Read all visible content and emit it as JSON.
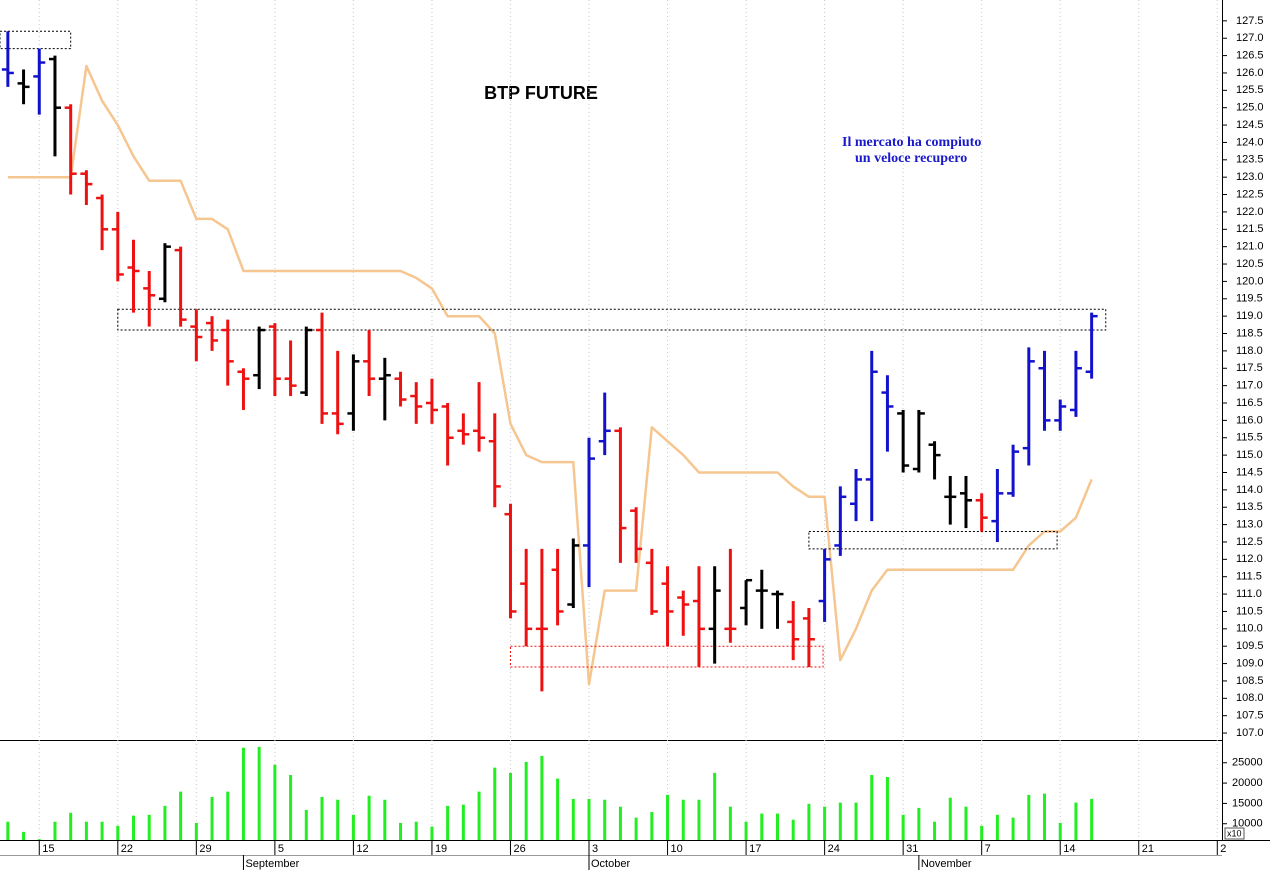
{
  "chart_data": [
    {
      "type": "ohlc",
      "title": "BTP FUTURE",
      "annotation": [
        "Il mercato ha compiuto",
        "un veloce recupero"
      ],
      "ylim": [
        106.8,
        128.1
      ],
      "yticks": [
        {
          "value": 107,
          "label": "107.0"
        },
        107.5,
        {
          "value": 108,
          "label": "108.0"
        },
        108.5,
        {
          "value": 109,
          "label": "109.0"
        },
        109.5,
        {
          "value": 110,
          "label": "110.0"
        },
        110.5,
        {
          "value": 111,
          "label": "111.0"
        },
        111.5,
        {
          "value": 112,
          "label": "112.0"
        },
        112.5,
        {
          "value": 113,
          "label": "113.0"
        },
        113.5,
        {
          "value": 114,
          "label": "114.0"
        },
        114.5,
        {
          "value": 115,
          "label": "115.0"
        },
        115.5,
        {
          "value": 116,
          "label": "116.0"
        },
        116.5,
        {
          "value": 117,
          "label": "117.0"
        },
        117.5,
        {
          "value": 118,
          "label": "118.0"
        },
        118.5,
        {
          "value": 119,
          "label": "119.0"
        },
        119.5,
        {
          "value": 120,
          "label": "120.0"
        },
        120.5,
        {
          "value": 121,
          "label": "121.0"
        },
        121.5,
        {
          "value": 122,
          "label": "122.0"
        },
        122.5,
        {
          "value": 123,
          "label": "123.0"
        },
        123.5,
        {
          "value": 124,
          "label": "124.0"
        },
        124.5,
        {
          "value": 125,
          "label": "125.0"
        },
        125.5,
        {
          "value": 126,
          "label": "126.0"
        },
        126.5,
        {
          "value": 127,
          "label": "127.0"
        },
        127.5
      ],
      "open": [
        126.1,
        125.7,
        125.9,
        126.4,
        125.0,
        123.1,
        122.4,
        121.5,
        120.4,
        119.8,
        119.5,
        120.9,
        118.7,
        118.8,
        118.6,
        117.4,
        117.3,
        118.7,
        117.2,
        116.8,
        118.6,
        116.2,
        116.2,
        117.7,
        117.2,
        117.2,
        116.7,
        116.5,
        116.4,
        115.7,
        115.7,
        115.4,
        113.3,
        111.3,
        110.0,
        111.7,
        110.7,
        112.4,
        115.4,
        115.7,
        113.4,
        111.9,
        111.3,
        110.9,
        110.8,
        110.0,
        110.0,
        110.6,
        111.1,
        111.0,
        110.2,
        110.3,
        110.8,
        112.4,
        113.6,
        114.3,
        116.8,
        116.2,
        114.6,
        115.3,
        113.8,
        113.9,
        113.7,
        113.1,
        113.9,
        115.2,
        117.5,
        116.0,
        116.3,
        117.4
      ],
      "high": [
        127.2,
        126.1,
        126.7,
        126.5,
        125.1,
        123.2,
        122.5,
        122.0,
        121.2,
        120.3,
        121.1,
        121.0,
        119.2,
        119.0,
        118.9,
        117.5,
        118.7,
        118.8,
        118.3,
        118.7,
        119.1,
        118.0,
        117.9,
        118.6,
        117.8,
        117.4,
        117.1,
        117.2,
        116.5,
        116.2,
        117.1,
        116.2,
        113.6,
        112.3,
        112.3,
        112.3,
        112.6,
        115.5,
        116.8,
        115.8,
        113.5,
        112.3,
        111.8,
        111.1,
        111.8,
        111.8,
        112.3,
        111.4,
        111.7,
        111.1,
        110.8,
        110.6,
        112.3,
        114.1,
        114.6,
        118.0,
        117.3,
        116.3,
        116.3,
        115.4,
        114.4,
        114.4,
        113.9,
        114.6,
        115.3,
        118.1,
        118.0,
        116.6,
        118.0,
        119.1
      ],
      "low": [
        125.6,
        125.1,
        124.8,
        123.6,
        122.5,
        122.2,
        120.9,
        120.0,
        119.1,
        118.7,
        119.4,
        118.7,
        117.7,
        118.0,
        117.0,
        116.3,
        116.9,
        116.7,
        116.7,
        116.7,
        115.9,
        115.6,
        115.7,
        116.7,
        116.0,
        116.4,
        115.9,
        115.9,
        114.7,
        115.3,
        115.1,
        113.5,
        110.3,
        109.5,
        108.2,
        110.1,
        110.6,
        111.2,
        115.0,
        111.9,
        111.9,
        110.4,
        109.5,
        109.8,
        108.9,
        109.0,
        109.6,
        110.1,
        110.0,
        110.0,
        109.1,
        108.9,
        110.2,
        112.1,
        113.1,
        113.1,
        115.1,
        114.5,
        114.5,
        114.3,
        113.0,
        112.9,
        112.8,
        112.5,
        113.8,
        114.7,
        115.7,
        115.7,
        116.1,
        117.2
      ],
      "close": [
        126.0,
        125.6,
        126.3,
        125.0,
        123.1,
        122.8,
        121.5,
        120.2,
        120.3,
        119.6,
        121.0,
        118.9,
        118.4,
        118.3,
        117.7,
        117.2,
        118.6,
        117.2,
        117.0,
        118.6,
        116.2,
        115.9,
        117.7,
        117.2,
        117.3,
        116.6,
        116.4,
        116.3,
        115.5,
        115.6,
        115.5,
        114.1,
        110.5,
        110.0,
        110.0,
        110.5,
        112.4,
        114.9,
        115.7,
        112.9,
        112.3,
        110.5,
        110.5,
        110.7,
        110.0,
        111.1,
        110.0,
        111.4,
        111.1,
        111.0,
        109.7,
        109.7,
        112.0,
        113.8,
        114.3,
        117.4,
        116.4,
        114.7,
        116.2,
        115.0,
        113.8,
        113.7,
        113.2,
        113.9,
        115.1,
        117.7,
        116.0,
        116.4,
        117.5,
        119.0
      ],
      "colors": [
        "#1212cc",
        "#000000",
        "#1212cc",
        "#000000",
        "#ee1111",
        "#ee1111",
        "#ee1111",
        "#ee1111",
        "#ee1111",
        "#ee1111",
        "#000000",
        "#ee1111",
        "#ee1111",
        "#ee1111",
        "#ee1111",
        "#ee1111",
        "#000000",
        "#ee1111",
        "#ee1111",
        "#000000",
        "#ee1111",
        "#ee1111",
        "#000000",
        "#ee1111",
        "#000000",
        "#ee1111",
        "#ee1111",
        "#ee1111",
        "#ee1111",
        "#ee1111",
        "#ee1111",
        "#ee1111",
        "#ee1111",
        "#ee1111",
        "#ee1111",
        "#ee1111",
        "#000000",
        "#1212cc",
        "#1212cc",
        "#ee1111",
        "#ee1111",
        "#ee1111",
        "#ee1111",
        "#ee1111",
        "#ee1111",
        "#000000",
        "#ee1111",
        "#000000",
        "#000000",
        "#000000",
        "#ee1111",
        "#ee1111",
        "#1212cc",
        "#1212cc",
        "#1212cc",
        "#1212cc",
        "#1212cc",
        "#000000",
        "#000000",
        "#000000",
        "#000000",
        "#000000",
        "#ee1111",
        "#1212cc",
        "#1212cc",
        "#1212cc",
        "#1212cc",
        "#1212cc",
        "#1212cc",
        "#1212cc"
      ],
      "line": {
        "color": "#f5c690",
        "values": [
          123.0,
          123.0,
          123.0,
          123.0,
          123.0,
          126.2,
          125.2,
          124.5,
          123.6,
          122.9,
          122.9,
          122.9,
          121.8,
          121.8,
          121.5,
          120.3,
          120.3,
          120.3,
          120.3,
          120.3,
          120.3,
          120.3,
          120.3,
          120.3,
          120.3,
          120.3,
          120.1,
          119.8,
          119.0,
          119.0,
          119.0,
          118.5,
          115.9,
          115.0,
          114.8,
          114.8,
          114.8,
          108.4,
          111.1,
          111.1,
          111.1,
          115.8,
          115.4,
          115.0,
          114.5,
          114.5,
          114.5,
          114.5,
          114.5,
          114.5,
          114.1,
          113.8,
          113.8,
          109.1,
          110.0,
          111.1,
          111.7,
          111.7,
          111.7,
          111.7,
          111.7,
          111.7,
          111.7,
          111.7,
          111.7,
          112.4,
          112.8,
          112.8,
          113.2,
          114.3
        ]
      },
      "boxes": [
        {
          "x": [
            -0.5,
            4
          ],
          "y": [
            126.7,
            127.2
          ],
          "color": "#000000"
        },
        {
          "x": [
            7,
            69.9
          ],
          "y": [
            118.6,
            119.2
          ],
          "color": "#000000"
        },
        {
          "x": [
            32,
            51.9
          ],
          "y": [
            108.9,
            109.5
          ],
          "color": "#ee1111"
        },
        {
          "x": [
            51,
            66.8
          ],
          "y": [
            112.3,
            112.8
          ],
          "color": "#000000"
        }
      ]
    },
    {
      "type": "bar",
      "color": "#22ee22",
      "values": [
        10500,
        8000,
        6200,
        10500,
        12700,
        10500,
        10500,
        9500,
        12000,
        12200,
        14400,
        17900,
        10200,
        16600,
        17900,
        28700,
        28900,
        24500,
        22000,
        13400,
        16600,
        15900,
        12200,
        16900,
        15900,
        10200,
        10500,
        9300,
        14400,
        14700,
        17900,
        23800,
        22500,
        25200,
        26700,
        21100,
        16100,
        16100,
        15900,
        14200,
        11500,
        12900,
        17100,
        15900,
        15900,
        22500,
        14200,
        10500,
        12500,
        12500,
        11000,
        14900,
        14200,
        15200,
        15200,
        22000,
        21500,
        12200,
        13900,
        10500,
        16400,
        14200,
        9500,
        12200,
        11500,
        17100,
        17400,
        10200,
        15200,
        16100
      ],
      "ylim": [
        6000,
        30600
      ],
      "yticks": [
        10000,
        15000,
        20000,
        25000
      ],
      "axis_note": "x10",
      "xlim": [
        -0.5,
        77.3
      ],
      "xticks": [
        {
          "value": 2,
          "label": "15"
        },
        {
          "value": 7,
          "label": "22"
        },
        {
          "value": 12,
          "label": "29"
        },
        {
          "value": 17,
          "label": "5"
        },
        {
          "value": 22,
          "label": "12"
        },
        {
          "value": 27,
          "label": "19"
        },
        {
          "value": 32,
          "label": "26"
        },
        {
          "value": 37,
          "label": "3"
        },
        {
          "value": 42,
          "label": "10"
        },
        {
          "value": 47,
          "label": "17"
        },
        {
          "value": 52,
          "label": "24"
        },
        {
          "value": 57,
          "label": "31"
        },
        {
          "value": 62,
          "label": "7"
        },
        {
          "value": 67,
          "label": "14"
        },
        {
          "value": 72,
          "label": "21"
        },
        {
          "value": 77,
          "label": "2"
        }
      ],
      "month_ticks": [
        {
          "value": 15,
          "label": "September"
        },
        {
          "value": 37,
          "label": "October"
        },
        {
          "value": 58,
          "label": "November"
        }
      ]
    }
  ]
}
